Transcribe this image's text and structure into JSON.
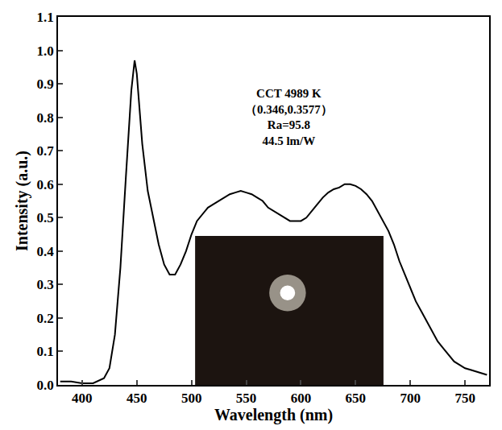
{
  "chart_data": {
    "type": "line",
    "x_label": "Wavelength (nm)",
    "y_label": "Intensity (a.u.)",
    "annotations": [
      "CCT 4989 K",
      "（0.346,0.3577）",
      "Ra=95.8",
      "44.5 lm/W"
    ],
    "x": [
      380,
      390,
      400,
      410,
      420,
      425,
      430,
      435,
      440,
      445,
      448,
      450,
      455,
      460,
      465,
      470,
      475,
      480,
      485,
      490,
      495,
      500,
      505,
      510,
      515,
      520,
      525,
      530,
      535,
      540,
      545,
      550,
      555,
      560,
      565,
      570,
      575,
      580,
      585,
      590,
      595,
      600,
      605,
      610,
      615,
      620,
      625,
      630,
      635,
      640,
      645,
      650,
      655,
      660,
      665,
      670,
      675,
      680,
      685,
      690,
      695,
      700,
      705,
      710,
      715,
      720,
      725,
      730,
      735,
      740,
      745,
      750,
      755,
      760,
      765,
      770
    ],
    "series": [
      {
        "color": "#000000",
        "values": [
          0.01,
          0.01,
          0.005,
          0.005,
          0.02,
          0.05,
          0.15,
          0.35,
          0.62,
          0.88,
          0.97,
          0.93,
          0.72,
          0.58,
          0.5,
          0.42,
          0.36,
          0.33,
          0.33,
          0.36,
          0.4,
          0.45,
          0.49,
          0.51,
          0.53,
          0.54,
          0.55,
          0.56,
          0.57,
          0.575,
          0.58,
          0.575,
          0.57,
          0.56,
          0.55,
          0.53,
          0.52,
          0.51,
          0.5,
          0.49,
          0.49,
          0.49,
          0.5,
          0.52,
          0.54,
          0.56,
          0.575,
          0.585,
          0.59,
          0.6,
          0.6,
          0.595,
          0.585,
          0.57,
          0.55,
          0.52,
          0.49,
          0.46,
          0.42,
          0.37,
          0.33,
          0.29,
          0.25,
          0.22,
          0.19,
          0.16,
          0.13,
          0.11,
          0.09,
          0.07,
          0.06,
          0.05,
          0.045,
          0.04,
          0.035,
          0.03
        ]
      }
    ],
    "xlim": [
      378,
      772
    ],
    "xticks": [
      400,
      450,
      500,
      550,
      600,
      650,
      700,
      750
    ],
    "ylim": [
      0,
      1.1
    ],
    "yticks": [
      {
        "value": 0,
        "label": "0.0"
      },
      0.1,
      0.2,
      0.3,
      0.4,
      0.5,
      0.6,
      0.7,
      0.8,
      0.9,
      {
        "value": 1,
        "label": "1.0"
      },
      0.1,
      1.1
    ],
    "grid": false
  }
}
